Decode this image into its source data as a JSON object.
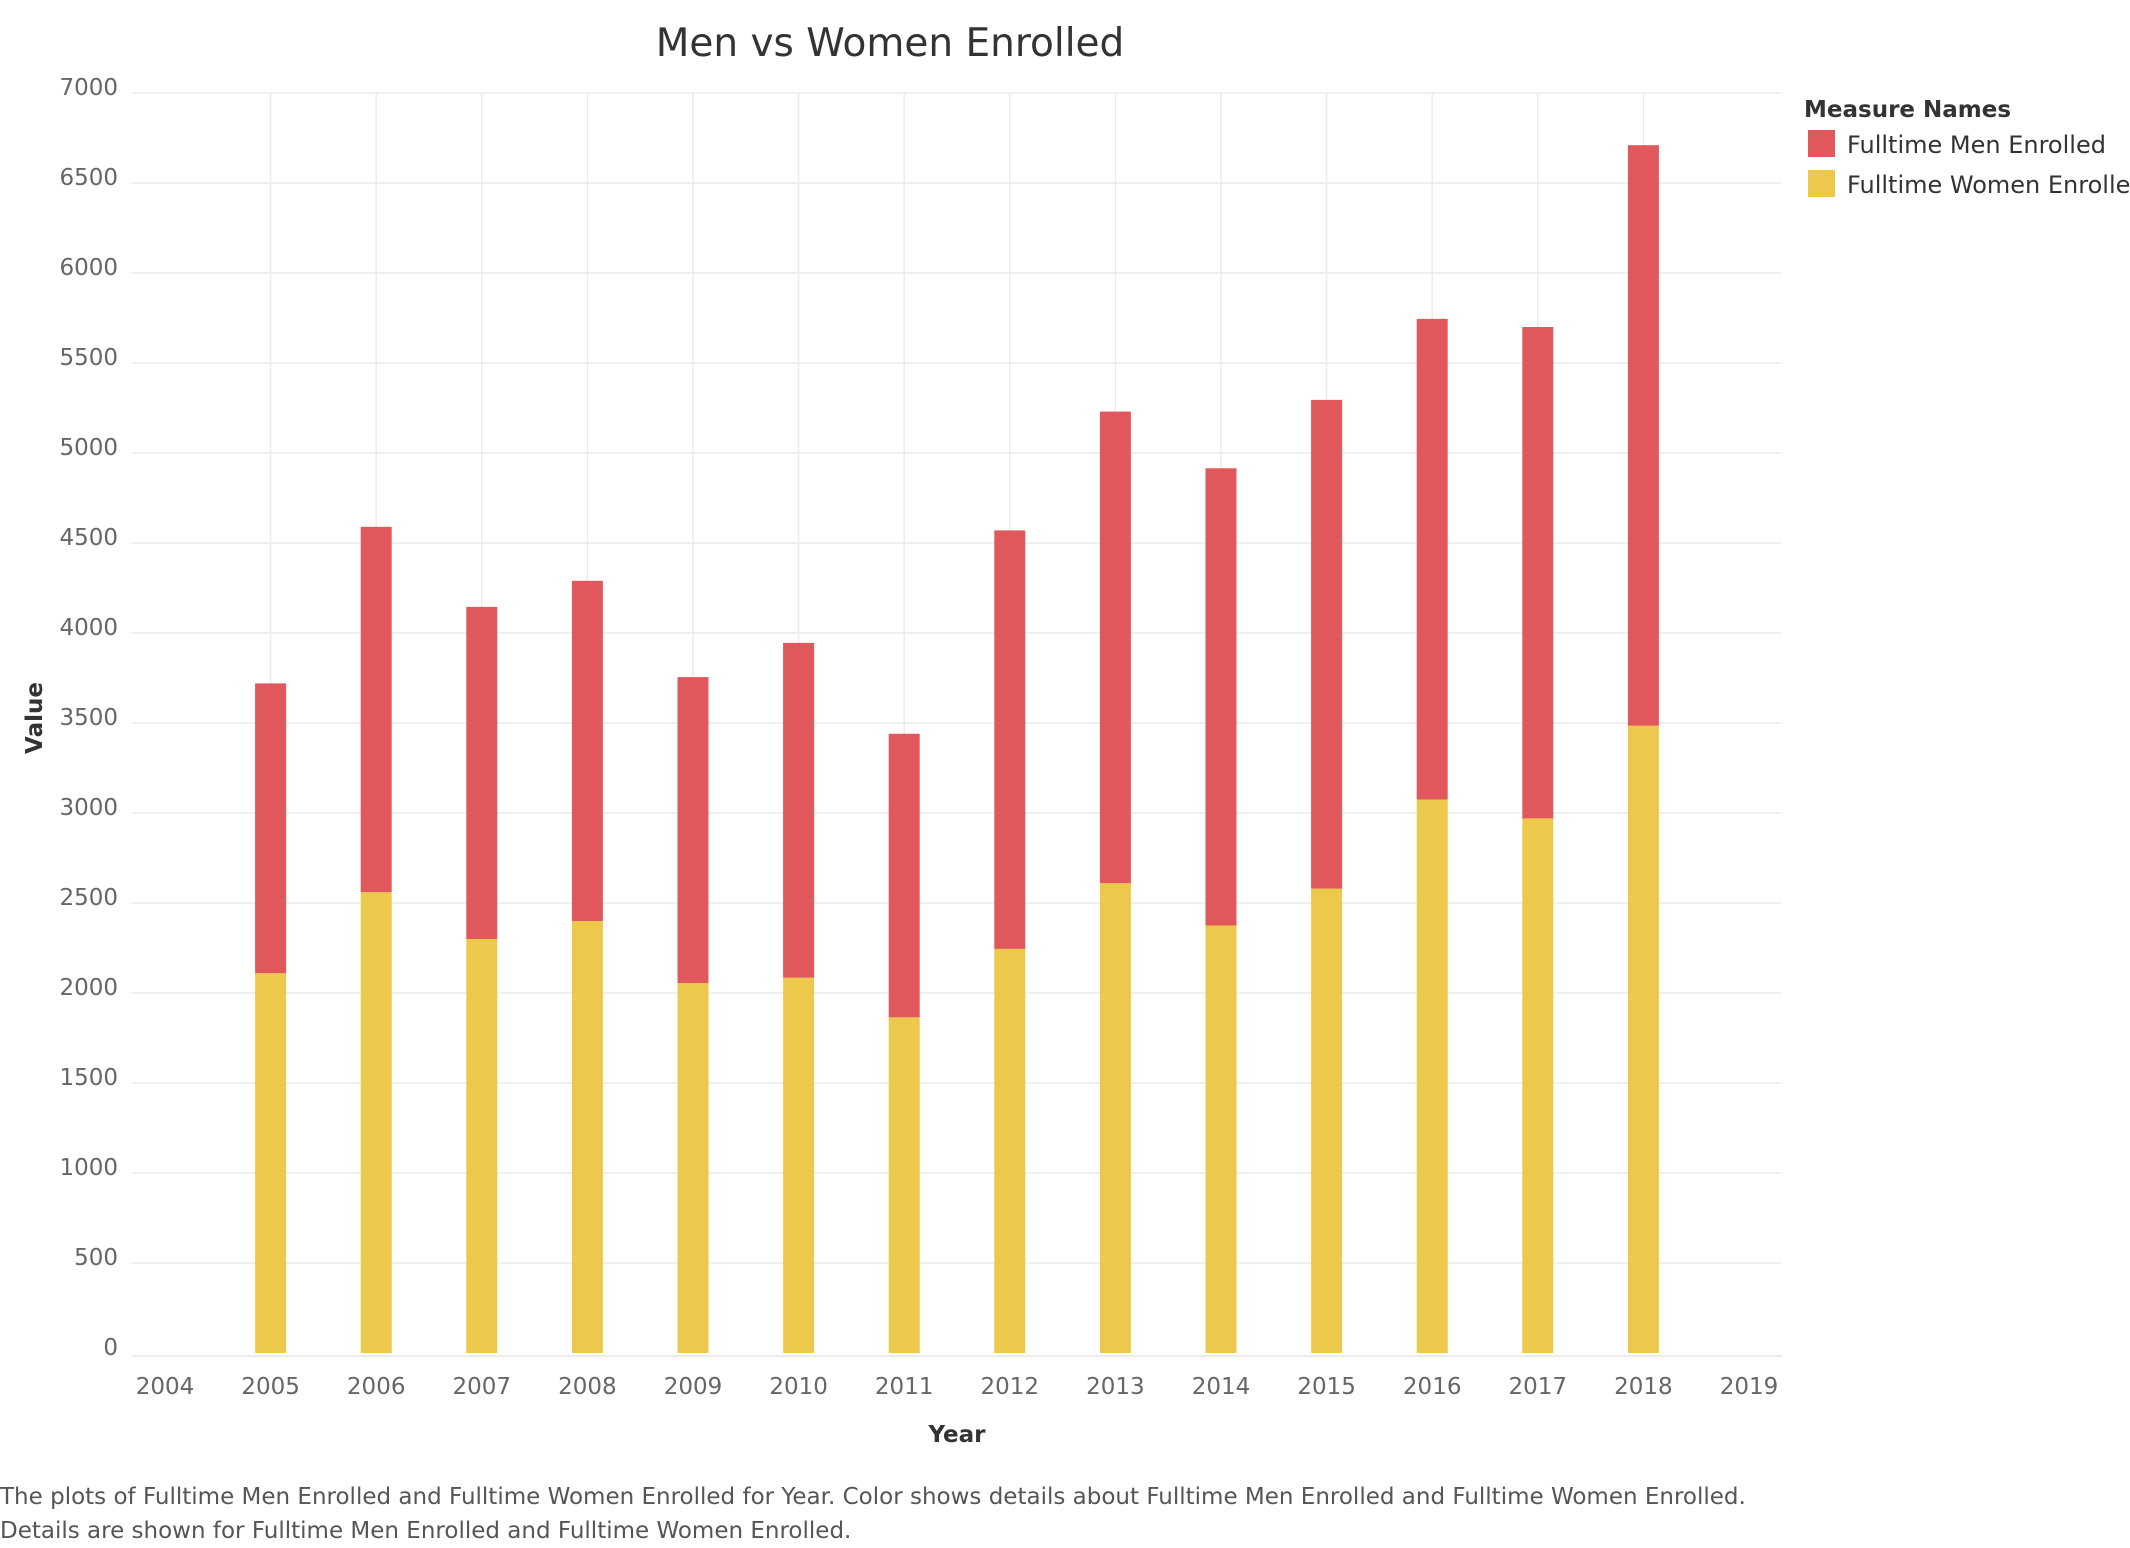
{
  "caption": {
    "line1": "The plots of Fulltime Men Enrolled and Fulltime Women Enrolled for Year.  Color shows details about Fulltime Men Enrolled and Fulltime Women Enrolled.",
    "line2": "Details are shown for Fulltime Men Enrolled and Fulltime Women Enrolled."
  },
  "chart_data": {
    "type": "bar",
    "stacked": true,
    "title": "Men vs Women Enrolled",
    "xlabel": "Year",
    "ylabel": "Value",
    "x_ticks": [
      "2004",
      "2005",
      "2006",
      "2007",
      "2008",
      "2009",
      "2010",
      "2011",
      "2012",
      "2013",
      "2014",
      "2015",
      "2016",
      "2017",
      "2018",
      "2019"
    ],
    "categories": [
      "2005",
      "2006",
      "2007",
      "2008",
      "2009",
      "2010",
      "2011",
      "2012",
      "2013",
      "2014",
      "2015",
      "2016",
      "2017",
      "2018"
    ],
    "y_ticks": [
      0,
      500,
      1000,
      1500,
      2000,
      2500,
      3000,
      3500,
      4000,
      4500,
      5000,
      5500,
      6000,
      6500,
      7000
    ],
    "ylim": [
      0,
      7000
    ],
    "grid": true,
    "legend": {
      "title": "Measure Names",
      "position": "right"
    },
    "series": [
      {
        "name": "Fulltime Women Enrolled",
        "color": "#ecc94b",
        "values": [
          2110,
          2560,
          2300,
          2400,
          2055,
          2085,
          1865,
          2245,
          2610,
          2375,
          2580,
          3075,
          2970,
          3485
        ]
      },
      {
        "name": "Fulltime Men Enrolled",
        "color": "#e0575c",
        "values": [
          1610,
          2030,
          1845,
          1890,
          1700,
          1860,
          1575,
          2325,
          2620,
          2540,
          2715,
          2670,
          2730,
          3225
        ]
      }
    ]
  }
}
